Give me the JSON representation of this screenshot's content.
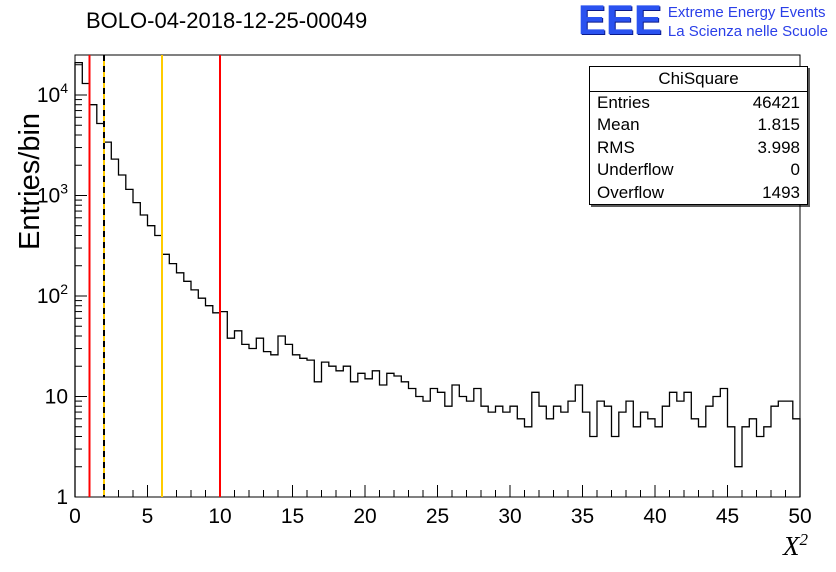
{
  "header": {
    "title": "BOLO-04-2018-12-25-00049"
  },
  "logo": {
    "acronym": "EEE",
    "line1": "Extreme Energy Events",
    "line2": "La Scienza nelle Scuole",
    "acronym_color": "#2a52f0",
    "text_color": "#2a3fe8"
  },
  "stats": {
    "title": "ChiSquare",
    "rows": [
      {
        "label": "Entries",
        "value": "46421"
      },
      {
        "label": "Mean",
        "value": "1.815"
      },
      {
        "label": "RMS",
        "value": "3.998"
      },
      {
        "label": "Underflow",
        "value": "0"
      },
      {
        "label": "Overflow",
        "value": "1493"
      }
    ]
  },
  "axes": {
    "x_major_ticks": [
      0,
      5,
      10,
      15,
      20,
      25,
      30,
      35,
      40,
      45,
      50
    ],
    "x_minor_step": 1,
    "y_ticks": [
      {
        "value": 1,
        "label": "1",
        "sup": null
      },
      {
        "value": 10,
        "label": "10",
        "sup": null
      },
      {
        "value": 100,
        "label": "10",
        "sup": "2"
      },
      {
        "value": 1000,
        "label": "10",
        "sup": "3"
      },
      {
        "value": 10000,
        "label": "10",
        "sup": "4"
      }
    ]
  },
  "chart_data": {
    "type": "bar",
    "subtype": "step-histogram",
    "title": "BOLO-04-2018-12-25-00049",
    "xlabel": "X^2",
    "x_title_base": "X",
    "x_title_sup": "2",
    "ylabel": "Entries/bin",
    "xlim": [
      0,
      50
    ],
    "ylim": [
      1,
      25000
    ],
    "yscale": "log",
    "grid": false,
    "legend_position": "stats-box top-right",
    "line_color": "#000000",
    "x_start": 0,
    "bin_width": 0.5,
    "values": [
      21000,
      13000,
      8000,
      5200,
      3400,
      2300,
      1600,
      1150,
      850,
      640,
      500,
      400,
      260,
      210,
      170,
      140,
      115,
      95,
      80,
      68,
      70,
      38,
      45,
      33,
      30,
      38,
      28,
      26,
      40,
      33,
      26,
      24,
      23,
      14,
      22,
      20,
      18,
      20,
      14,
      17,
      15,
      18,
      13,
      17,
      16,
      14,
      12,
      10,
      9,
      12,
      11,
      8,
      13,
      10,
      9,
      12,
      8,
      7,
      8,
      7,
      8,
      6,
      5,
      11,
      8,
      6,
      8,
      7,
      9,
      13,
      7,
      4,
      9,
      8,
      4,
      7,
      9,
      5,
      7,
      6,
      5,
      8,
      11,
      9,
      11,
      6,
      5,
      8,
      10,
      12,
      5,
      2,
      5,
      6,
      4,
      5,
      8,
      9,
      9,
      6
    ],
    "vlines": [
      {
        "x": 1,
        "color": "#ff0000",
        "style": "solid"
      },
      {
        "x": 2,
        "color": "#ffcc00",
        "style": "solid"
      },
      {
        "x": 2,
        "color": "#000000",
        "style": "dashed"
      },
      {
        "x": 6,
        "color": "#ffcc00",
        "style": "solid"
      },
      {
        "x": 10,
        "color": "#ff0000",
        "style": "solid"
      }
    ]
  }
}
